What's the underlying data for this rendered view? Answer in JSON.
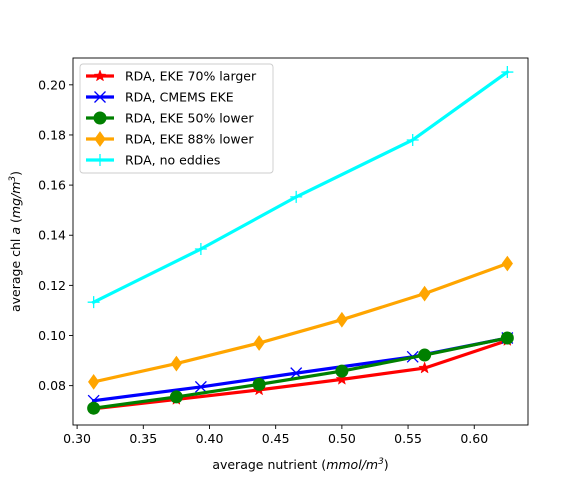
{
  "chart_data": {
    "type": "line",
    "title": "",
    "xlabel_parts": [
      {
        "text": "average nutrient (",
        "italic": false
      },
      {
        "text": "mmol/m",
        "italic": true
      },
      {
        "text": "3",
        "italic": true,
        "sup": true
      },
      {
        "text": ")",
        "italic": false
      }
    ],
    "ylabel_parts": [
      {
        "text": "average chl ",
        "italic": false
      },
      {
        "text": "a",
        "italic": true
      },
      {
        "text": " (",
        "italic": false
      },
      {
        "text": "mg/m",
        "italic": true
      },
      {
        "text": "3",
        "italic": true,
        "sup": true
      },
      {
        "text": ")",
        "italic": false
      }
    ],
    "xlim": [
      0.2969,
      0.6406
    ],
    "ylim": [
      0.0643,
      0.2107
    ],
    "xticks": [
      0.3,
      0.35,
      0.4,
      0.45,
      0.5,
      0.55,
      0.6
    ],
    "xtick_labels": [
      "0.30",
      "0.35",
      "0.40",
      "0.45",
      "0.50",
      "0.55",
      "0.60"
    ],
    "yticks": [
      0.08,
      0.1,
      0.12,
      0.14,
      0.16,
      0.18,
      0.2
    ],
    "ytick_labels": [
      "0.08",
      "0.10",
      "0.12",
      "0.14",
      "0.16",
      "0.18",
      "0.20"
    ],
    "grid": false,
    "legend_position": "top-left",
    "series": [
      {
        "name": "RDA, EKE 70% larger",
        "color": "#ff0000",
        "marker": "star",
        "x": [
          0.3125,
          0.375,
          0.4375,
          0.5,
          0.5625,
          0.625
        ],
        "y": [
          0.0708,
          0.0745,
          0.0783,
          0.0825,
          0.087,
          0.098
        ]
      },
      {
        "name": "RDA, CMEMS EKE",
        "color": "#0000ff",
        "marker": "x",
        "x": [
          0.3125,
          0.3935,
          0.4655,
          0.5535,
          0.625
        ],
        "y": [
          0.074,
          0.0795,
          0.085,
          0.0915,
          0.099
        ]
      },
      {
        "name": "RDA, EKE 50% lower",
        "color": "#008000",
        "marker": "circle",
        "x": [
          0.3125,
          0.375,
          0.4375,
          0.5,
          0.5625,
          0.625
        ],
        "y": [
          0.071,
          0.0755,
          0.0805,
          0.0858,
          0.0922,
          0.099
        ]
      },
      {
        "name": "RDA, EKE 88% lower",
        "color": "#ffa500",
        "marker": "diamond",
        "x": [
          0.3125,
          0.375,
          0.4375,
          0.5,
          0.5625,
          0.625
        ],
        "y": [
          0.0815,
          0.0888,
          0.097,
          0.1063,
          0.1167,
          0.1287
        ]
      },
      {
        "name": "RDA, no eddies",
        "color": "#00ffff",
        "marker": "plus",
        "x": [
          0.3125,
          0.3935,
          0.4655,
          0.5535,
          0.625
        ],
        "y": [
          0.1133,
          0.1345,
          0.1553,
          0.178,
          0.2051
        ]
      }
    ]
  }
}
